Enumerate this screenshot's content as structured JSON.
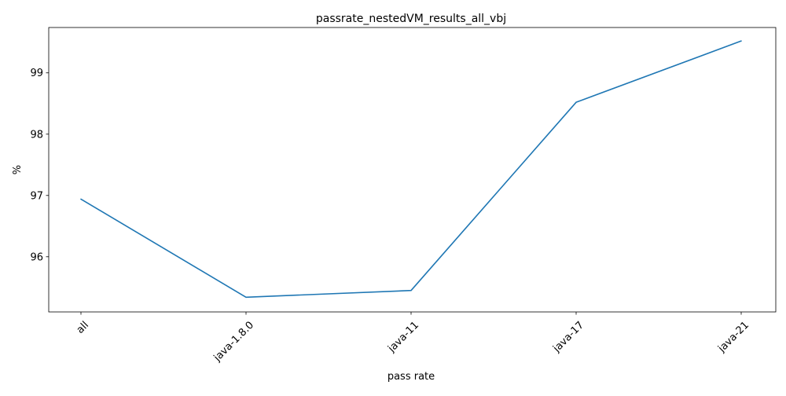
{
  "chart_data": {
    "type": "line",
    "title": "passrate_nestedVM_results_all_vbj",
    "xlabel": "pass rate",
    "ylabel": "%",
    "categories": [
      "all",
      "java-1.8.0",
      "java-11",
      "java-17",
      "java-21"
    ],
    "series": [
      {
        "values": [
          96.94,
          95.34,
          95.45,
          98.52,
          99.52
        ],
        "color": "#1f77b4"
      }
    ],
    "ylim": [
      95.1,
      99.74
    ],
    "yticks": [
      96,
      97,
      98,
      99
    ],
    "ytick_labels": [
      "96",
      "97",
      "98",
      "99"
    ],
    "grid": false,
    "legend": "none"
  }
}
